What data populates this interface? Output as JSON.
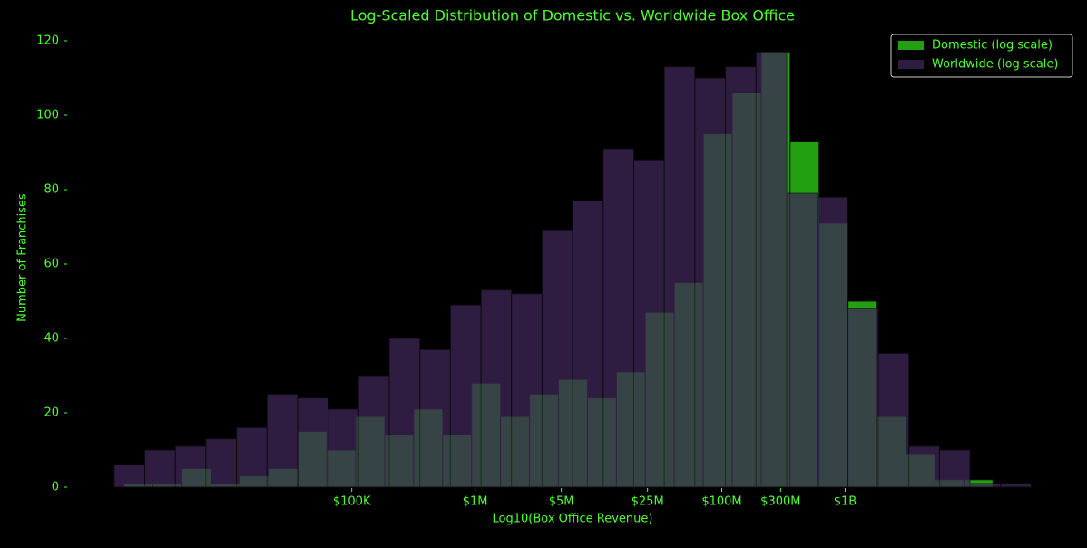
{
  "chart_data": {
    "type": "histogram",
    "title": "Log-Scaled Distribution of Domestic vs. Worldwide Box Office",
    "xlabel": "Log10(Box Office Revenue)",
    "ylabel": "Number of Franchises",
    "series": [
      {
        "name": "Domestic (log scale)",
        "color": "#22a012",
        "bins": [
          3.154,
          3.389,
          3.624,
          3.858,
          4.093,
          4.328,
          4.563,
          4.798,
          5.032,
          5.267,
          5.502,
          5.737,
          5.972,
          6.206,
          6.441,
          6.676,
          6.911,
          7.146,
          7.38,
          7.615,
          7.85,
          8.085,
          8.32,
          8.554,
          8.789,
          9.024,
          9.259,
          9.494,
          9.728,
          9.963,
          10.198
        ],
        "values": [
          1,
          1,
          5,
          1,
          3,
          5,
          15,
          10,
          19,
          14,
          21,
          14,
          28,
          19,
          25,
          29,
          24,
          31,
          47,
          55,
          95,
          106,
          117,
          93,
          71,
          50,
          19,
          9,
          2,
          2
        ]
      },
      {
        "name": "Worldwide (log scale)",
        "color": "#3f2657",
        "bins": [
          3.074,
          3.322,
          3.57,
          3.817,
          4.065,
          4.313,
          4.561,
          4.809,
          5.056,
          5.304,
          5.552,
          5.8,
          6.048,
          6.295,
          6.543,
          6.791,
          7.039,
          7.287,
          7.534,
          7.782,
          8.03,
          8.278,
          8.526,
          8.773,
          9.021,
          9.269,
          9.517,
          9.765,
          10.012,
          10.26,
          10.508
        ],
        "values": [
          6,
          10,
          11,
          13,
          16,
          25,
          24,
          21,
          30,
          40,
          37,
          49,
          53,
          52,
          69,
          77,
          91,
          88,
          113,
          110,
          113,
          117,
          79,
          78,
          48,
          36,
          11,
          10,
          1,
          1
        ]
      }
    ],
    "xlim": [
      2.7,
      10.88
    ],
    "ylim": [
      0,
      120
    ],
    "xticks": [
      {
        "value": 5,
        "label": "$100K"
      },
      {
        "value": 6,
        "label": "$1M"
      },
      {
        "value": 6.699,
        "label": "$5M"
      },
      {
        "value": 7.398,
        "label": "$25M"
      },
      {
        "value": 8,
        "label": "$100M"
      },
      {
        "value": 8.477,
        "label": "$300M"
      },
      {
        "value": 9,
        "label": "$1B"
      }
    ],
    "yticks": [
      0,
      20,
      40,
      60,
      80,
      100,
      120
    ],
    "legend": "upper right",
    "grid": false
  }
}
